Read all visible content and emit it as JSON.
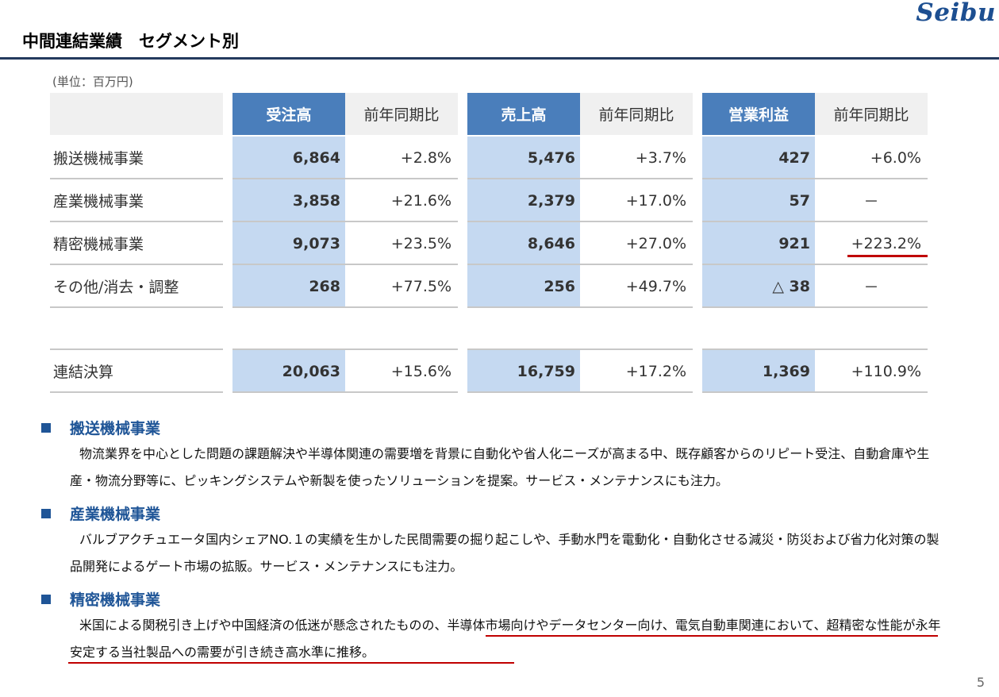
{
  "header": {
    "logo": "Seibu",
    "title": "中間連結業績　セグメント別",
    "unit": "(単位：百万円)"
  },
  "table": {
    "headers": {
      "orders": "受注高",
      "orders_yoy": "前年同期比",
      "sales": "売上高",
      "sales_yoy": "前年同期比",
      "profit": "営業利益",
      "profit_yoy": "前年同期比"
    },
    "rows": [
      {
        "label": "搬送機械事業",
        "orders": "6,864",
        "orders_yoy": "+2.8%",
        "sales": "5,476",
        "sales_yoy": "+3.7%",
        "profit": "427",
        "profit_yoy": "+6.0%"
      },
      {
        "label": "産業機械事業",
        "orders": "3,858",
        "orders_yoy": "+21.6%",
        "sales": "2,379",
        "sales_yoy": "+17.0%",
        "profit": "57",
        "profit_yoy": "－"
      },
      {
        "label": "精密機械事業",
        "orders": "9,073",
        "orders_yoy": "+23.5%",
        "sales": "8,646",
        "sales_yoy": "+27.0%",
        "profit": "921",
        "profit_yoy": "+223.2%"
      },
      {
        "label": "その他/消去・調整",
        "orders": "268",
        "orders_yoy": "+77.5%",
        "sales": "256",
        "sales_yoy": "+49.7%",
        "profit": "△ 38",
        "profit_yoy": "－"
      }
    ],
    "total": {
      "label": "連結決算",
      "orders": "20,063",
      "orders_yoy": "+15.6%",
      "sales": "16,759",
      "sales_yoy": "+17.2%",
      "profit": "1,369",
      "profit_yoy": "+110.9%"
    }
  },
  "sections": [
    {
      "heading": "搬送機械事業",
      "text": "物流業界を中心とした問題の課題解決や半導体関連の需要増を背景に自動化や省人化ニーズが高まる中、既存顧客からのリピート受注、自動倉庫や生産・物流分野等に、ピッキングシステムや新製を使ったソリューションを提案。サービス・メンテナンスにも注力。"
    },
    {
      "heading": "産業機械事業",
      "text": "バルブアクチュエータ国内シェアNO.１の実績を生かした民間需要の掘り起こしや、手動水門を電動化・自動化させる減災・防災および省力化対策の製品開発によるゲート市場の拡販。サービス・メンテナンスにも注力。"
    },
    {
      "heading": "精密機械事業",
      "text": "米国による関税引き上げや中国経済の低迷が懸念されたものの、半導体市場向けやデータセンター向け、電気自動車関連において、超精密な性能が永年安定する当社製品への需要が引き続き高水準に推移。"
    }
  ],
  "page_number": "5",
  "colors": {
    "accent": "#1f5597",
    "header_blue": "#4a7ebb",
    "value_fill": "#c5d9f1",
    "highlight": "#c00000"
  }
}
